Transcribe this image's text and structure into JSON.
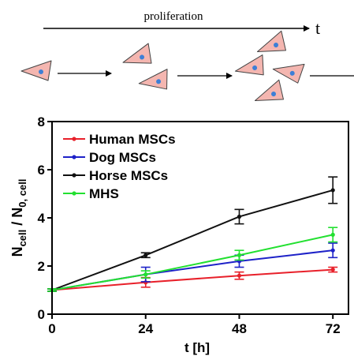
{
  "schematic": {
    "label": "proliferation",
    "time_symbol": "t",
    "cell_color": "#f4b6b0",
    "nucleus_color": "#3d7fd6"
  },
  "chart_data": {
    "type": "line",
    "x": [
      0,
      24,
      48,
      72
    ],
    "xticks": [
      "0",
      "24",
      "48",
      "72"
    ],
    "yticks": [
      "0",
      "2",
      "4",
      "6",
      "8"
    ],
    "xlim": [
      0,
      76
    ],
    "ylim": [
      0,
      8
    ],
    "xlabel": "t [h]",
    "ylabel": {
      "main": "N",
      "sub1": "cell",
      "mid": " / N",
      "sub2": "0, cell"
    },
    "legend_position": "top-left",
    "grid": false,
    "series": [
      {
        "name": "Human MSCs",
        "color": "#e8202a",
        "values": [
          1.0,
          1.32,
          1.6,
          1.85
        ],
        "errors": [
          0.05,
          0.2,
          0.15,
          0.1
        ]
      },
      {
        "name": "Dog MSCs",
        "color": "#1e22c8",
        "values": [
          1.0,
          1.65,
          2.2,
          2.65
        ],
        "errors": [
          0.05,
          0.3,
          0.25,
          0.3
        ]
      },
      {
        "name": "Horse MSCs",
        "color": "#111111",
        "values": [
          1.0,
          2.45,
          4.05,
          5.15
        ],
        "errors": [
          0.05,
          0.1,
          0.3,
          0.55
        ]
      },
      {
        "name": "MHS",
        "color": "#22e030",
        "values": [
          1.0,
          1.65,
          2.45,
          3.3
        ],
        "errors": [
          0.05,
          0.15,
          0.2,
          0.3
        ]
      }
    ]
  }
}
